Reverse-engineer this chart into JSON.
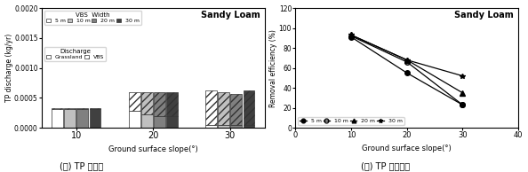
{
  "bar_slopes": [
    10,
    20,
    30
  ],
  "vbs_widths": [
    "5 m",
    "10 m",
    "20 m",
    "30 m"
  ],
  "grassland_values": {
    "10": [
      0.00031,
      0.00031,
      0.00031,
      0.00031
    ],
    "20": [
      0.00028,
      0.00022,
      0.0002,
      0.00019
    ],
    "30": [
      5e-05,
      5e-05,
      5e-05,
      5e-05
    ]
  },
  "vbs_values": {
    "10": [
      2e-05,
      2e-05,
      2e-05,
      2e-05
    ],
    "20": [
      0.00032,
      0.00038,
      0.0004,
      0.00041
    ],
    "30": [
      0.00057,
      0.00055,
      0.00052,
      0.00057
    ]
  },
  "bar_colors": [
    "#ffffff",
    "#c0c0c0",
    "#808080",
    "#404040"
  ],
  "bar_edge_color": "#333333",
  "line_slopes": [
    10,
    20,
    30
  ],
  "removal_efficiency": {
    "5m": [
      91,
      55,
      23
    ],
    "10m": [
      92,
      66,
      23
    ],
    "20m": [
      93,
      68,
      35
    ],
    "30m": [
      93,
      68,
      52
    ]
  },
  "line_markers": [
    "o",
    "o",
    "^",
    "*"
  ],
  "line_fillstyles": [
    "full",
    "none",
    "full",
    "full"
  ],
  "line_labels": [
    "5 m",
    "10 m",
    "20 m",
    "30 m"
  ],
  "xlabel_bar": "Ground surface slope(°)",
  "ylabel_bar": "TP discharge (kg/yr)",
  "xlabel_line": "Ground surface slope(°)",
  "ylabel_line": "Removal efficiency (%)",
  "title_bar": "Sandy Loam",
  "title_line": "Sandy Loam",
  "caption_bar": "(가) TP 유출량",
  "caption_line": "(나) TP 저감효율",
  "ylim_bar": [
    0,
    0.002
  ],
  "ylim_line": [
    0,
    120
  ],
  "xlim_line": [
    0,
    40
  ],
  "yticks_bar": [
    0,
    0.0005,
    0.001,
    0.0015,
    0.002
  ],
  "yticks_line": [
    0,
    20,
    40,
    60,
    80,
    100,
    120
  ],
  "xticks_line": [
    0,
    10,
    20,
    30,
    40
  ]
}
